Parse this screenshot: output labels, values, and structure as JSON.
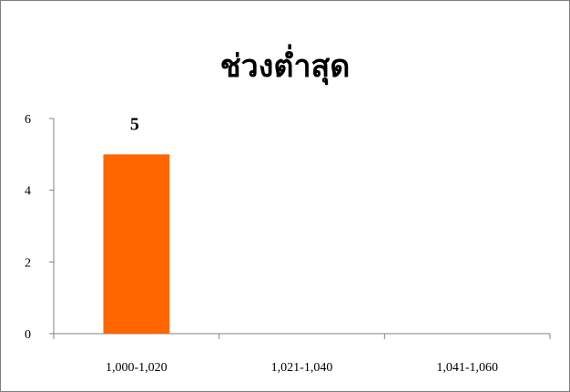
{
  "chart_data": {
    "type": "bar",
    "title": "ช่วงต่ำสุด",
    "categories": [
      "1,000-1,020",
      "1,021-1,040",
      "1,041-1,060"
    ],
    "values": [
      5,
      0,
      0
    ],
    "data_labels": [
      "5",
      null,
      null
    ],
    "xlabel": "",
    "ylabel": "",
    "ylim": [
      0,
      6
    ],
    "yticks": [
      0,
      2,
      4,
      6
    ],
    "grid": false,
    "legend": "none",
    "bar_color": "#FF6600"
  }
}
